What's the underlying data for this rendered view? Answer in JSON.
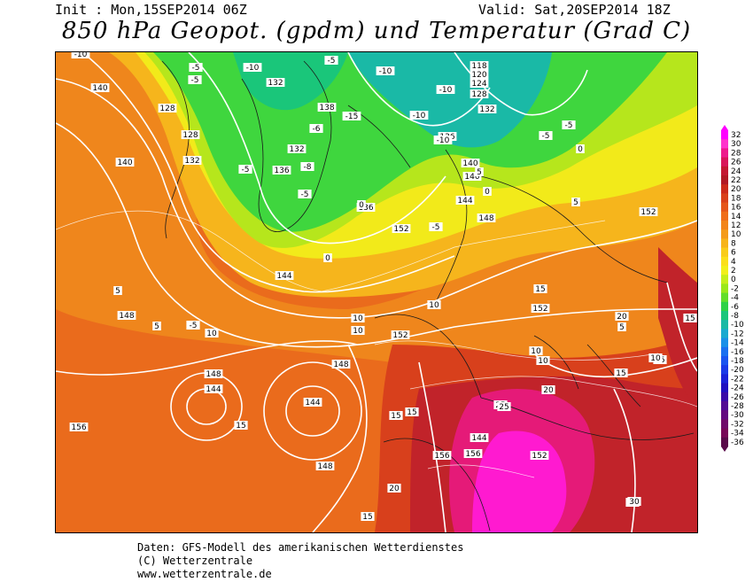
{
  "header": {
    "init": "Init : Mon,15SEP2014 06Z",
    "valid": "Valid: Sat,20SEP2014 18Z",
    "title": "850 hPa Geopot. (gpdm) und Temperatur (Grad C)"
  },
  "legend": {
    "labels": [
      "32",
      "30",
      "28",
      "26",
      "24",
      "22",
      "20",
      "18",
      "16",
      "14",
      "12",
      "10",
      "8",
      "6",
      "4",
      "2",
      "0",
      "-2",
      "-4",
      "-6",
      "-8",
      "-10",
      "-12",
      "-14",
      "-16",
      "-18",
      "-20",
      "-22",
      "-24",
      "-26",
      "-28",
      "-30",
      "-32",
      "-34",
      "-36"
    ],
    "colors": [
      "#ff00ff",
      "#ff33cc",
      "#ee1a8c",
      "#d9155a",
      "#c41732",
      "#b11824",
      "#cc2a1a",
      "#d9401a",
      "#e5561a",
      "#ef6d1a",
      "#f2851a",
      "#f49b1a",
      "#f7b41a",
      "#f9cc1a",
      "#fbdf1a",
      "#f2ef1a",
      "#c6ee1a",
      "#9ae81a",
      "#63de2a",
      "#2fd245",
      "#1ac67a",
      "#1ab9a6",
      "#1aa9d0",
      "#1a90e8",
      "#1a70f0",
      "#1a55f0",
      "#1a3ae8",
      "#1a22d8",
      "#2010c0",
      "#3a0aa8",
      "#520a94",
      "#640880",
      "#700a6a",
      "#780858",
      "#5a0a4a"
    ]
  },
  "geopotential_labels": [
    "140",
    "132",
    "128",
    "136",
    "138",
    "132",
    "144",
    "136",
    "148",
    "152",
    "156",
    "144",
    "118",
    "120",
    "124",
    "128",
    "136",
    "132",
    "140",
    "144",
    "148",
    "152",
    "152",
    "156",
    "156",
    "152",
    "148",
    "148",
    "144",
    "144",
    "148",
    "152",
    "140",
    "128",
    "132",
    "140"
  ],
  "temperature_labels": [
    "-10",
    "-5",
    "-10",
    "-5",
    "-10",
    "-5",
    "-15",
    "-10",
    "-10",
    "-10",
    "-5",
    "-5",
    "-5",
    "-6",
    "-8",
    "0",
    "-5",
    "0",
    "5",
    "0",
    "-5",
    "0",
    "-5",
    "5",
    "10",
    "10",
    "10",
    "10",
    "15",
    "15",
    "15",
    "15",
    "10",
    "5",
    "5",
    "5",
    "10",
    "15",
    "20",
    "25",
    "20",
    "15",
    "20",
    "20",
    "25",
    "30",
    "15",
    "15",
    "10"
  ],
  "footer": {
    "line1": "Daten: GFS-Modell des amerikanischen Wetterdienstes",
    "line2": "(C) Wetterzentrale",
    "line3": "www.wetterzentrale.de"
  }
}
